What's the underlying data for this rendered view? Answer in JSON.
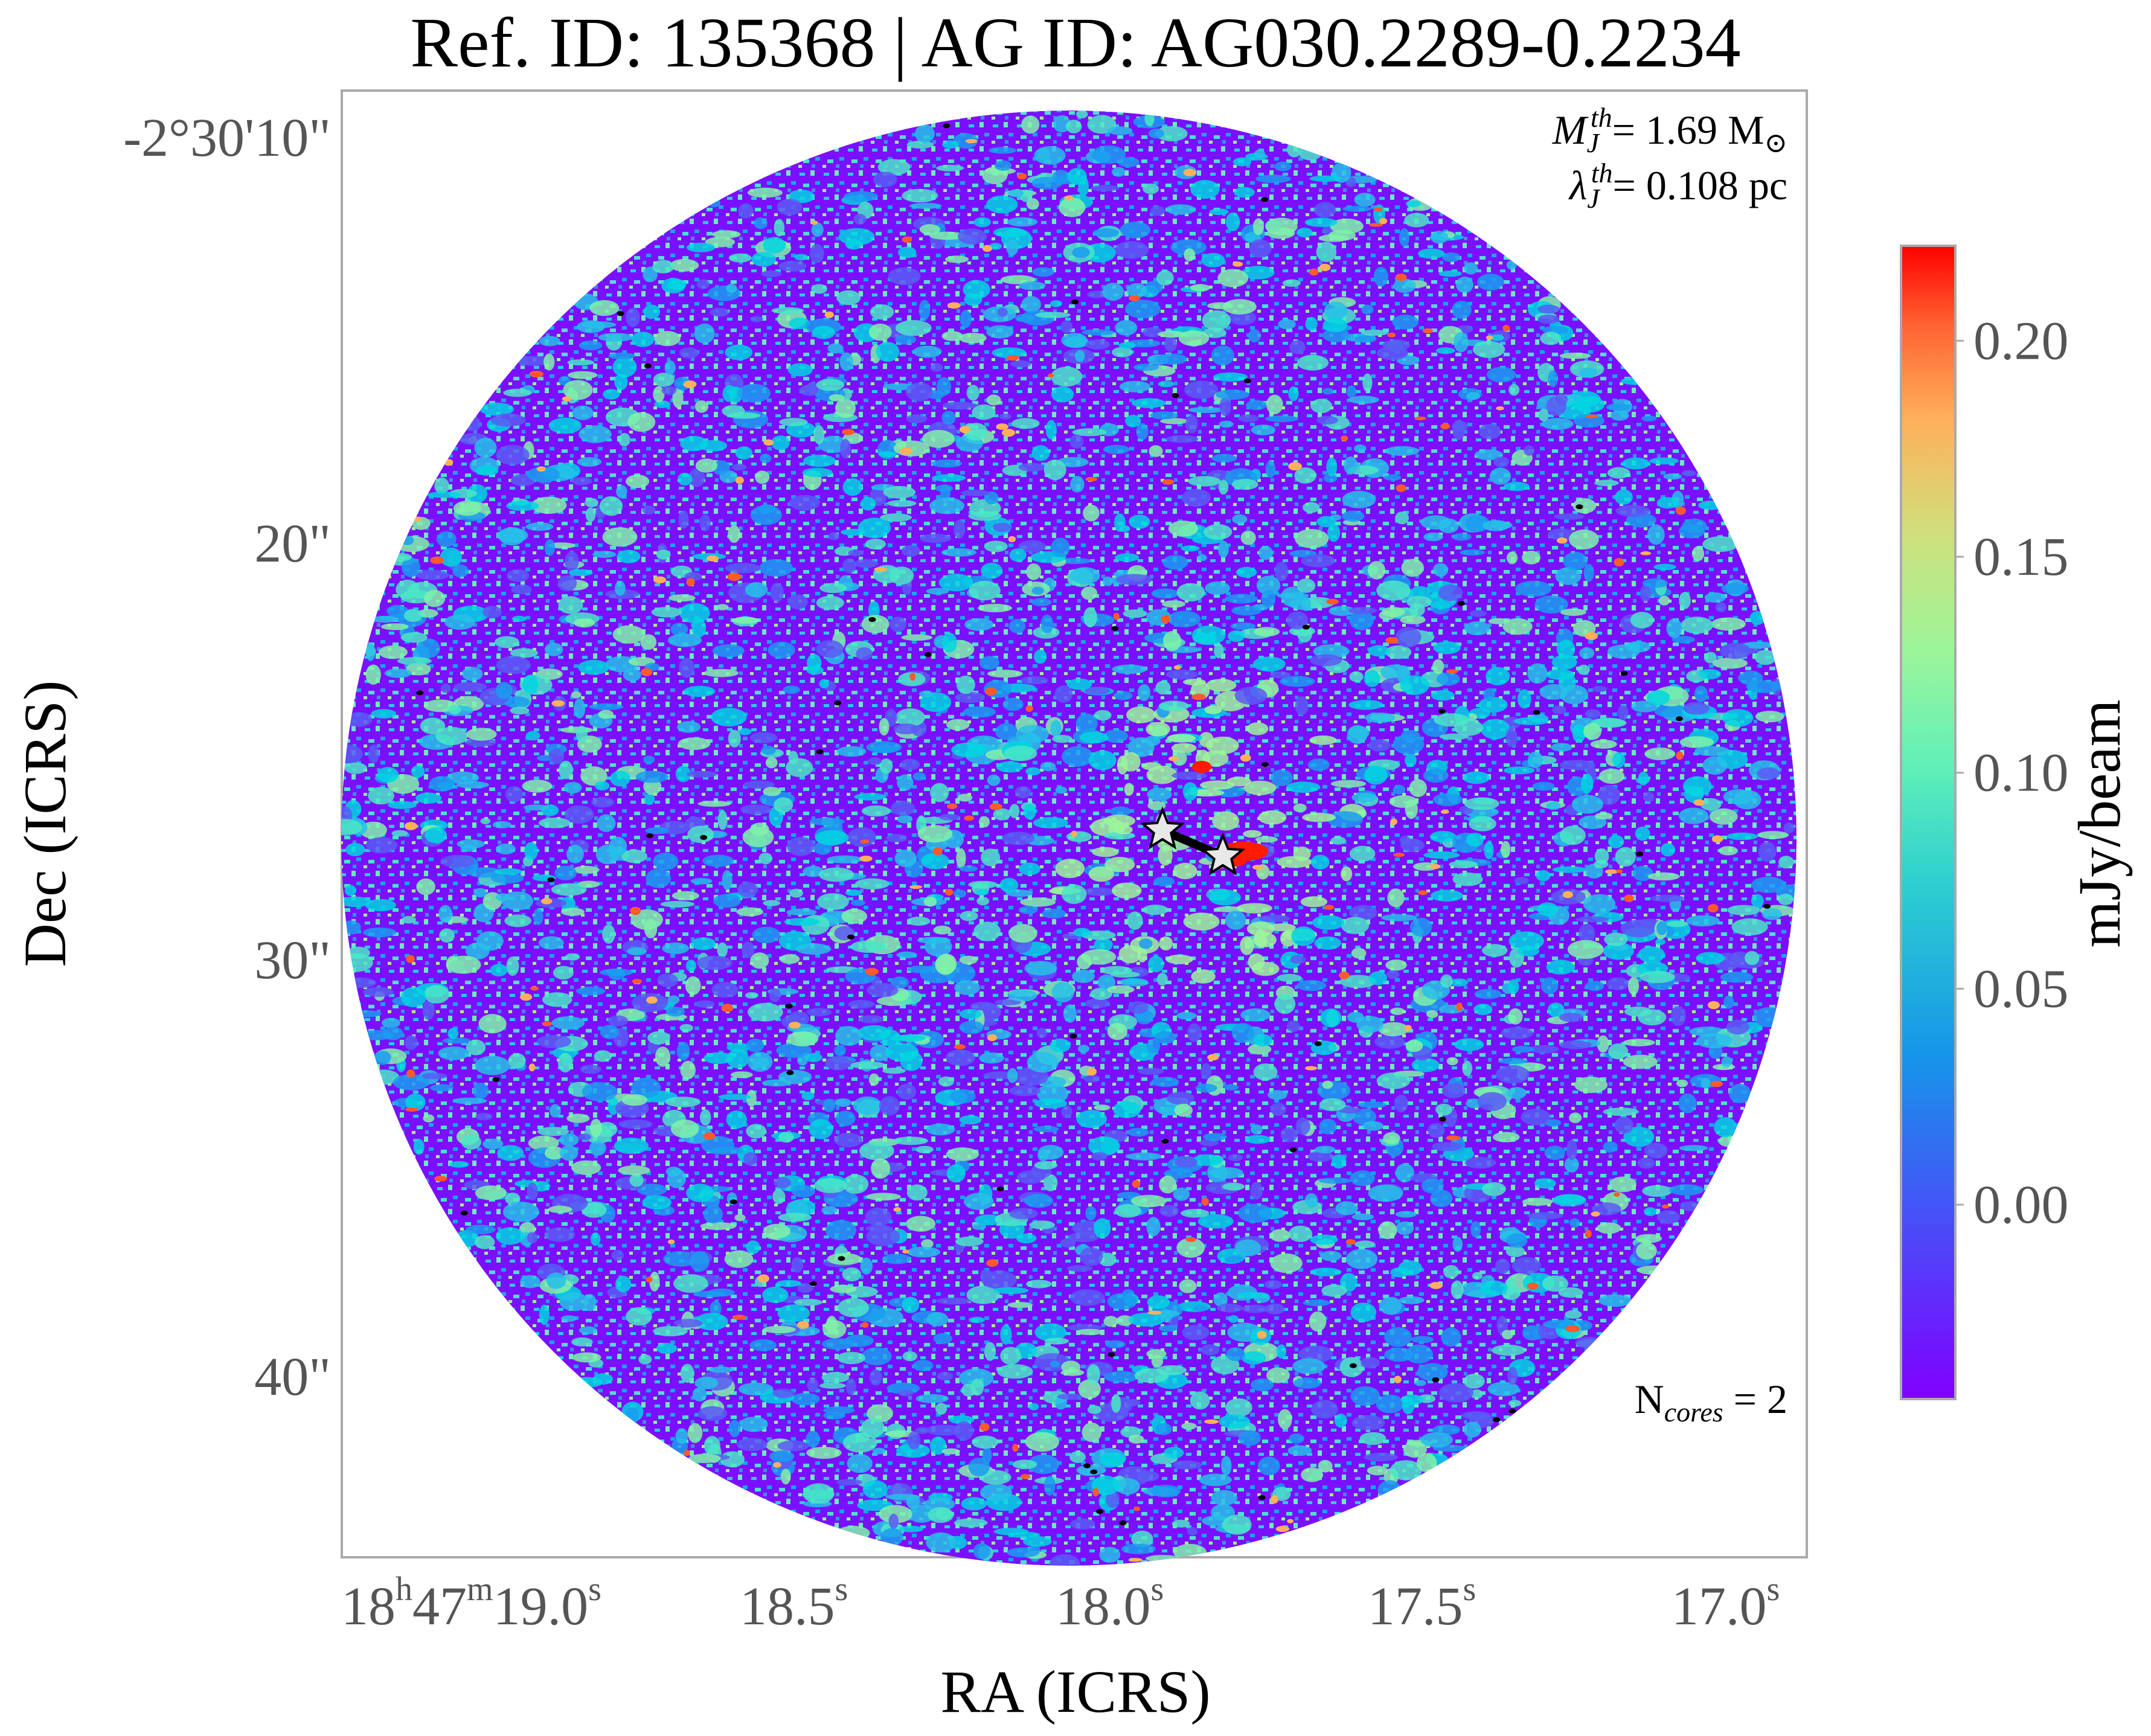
{
  "title": "Ref. ID: 135368 | AG ID: AG030.2289-0.2234",
  "x_axis": {
    "label": "RA (ICRS)",
    "ticks": [
      {
        "h": "18",
        "m": "47",
        "s": "19.0"
      },
      {
        "s": "18.5"
      },
      {
        "s": "18.0"
      },
      {
        "s": "17.5"
      },
      {
        "s": "17.0"
      }
    ],
    "unit_h": "h",
    "unit_m": "m",
    "unit_s": "s"
  },
  "y_axis": {
    "label": "Dec (ICRS)",
    "ticks": [
      "-2°30'10\"",
      "20\"",
      "30\"",
      "40\""
    ]
  },
  "annotations": {
    "mass_symbol": "M",
    "mass_sub": "J",
    "mass_sup": "th",
    "mass_value": "= 1.69 M",
    "mass_sun": "⊙",
    "lambda_symbol": "λ",
    "lambda_sub": "J",
    "lambda_sup": "th",
    "lambda_value": "= 0.108 pc",
    "ncores_symbol": "N",
    "ncores_sub": "cores",
    "ncores_value": " = 2"
  },
  "colorbar": {
    "label": "mJy/beam",
    "colormap": "rainbow",
    "ticks": [
      "0.20",
      "0.15",
      "0.10",
      "0.05",
      "0.00"
    ],
    "tick_values": [
      0.2,
      0.15,
      0.1,
      0.05,
      0.0
    ],
    "range": [
      -0.045,
      0.222
    ]
  },
  "cores_count": 2,
  "colors": {
    "background_low": "#7a00ff",
    "mid": "#00e0d8",
    "high": "#ff0000",
    "marker_fill": "#e8e8e8",
    "marker_stroke": "#000000",
    "frame": "#aaaaaa"
  }
}
